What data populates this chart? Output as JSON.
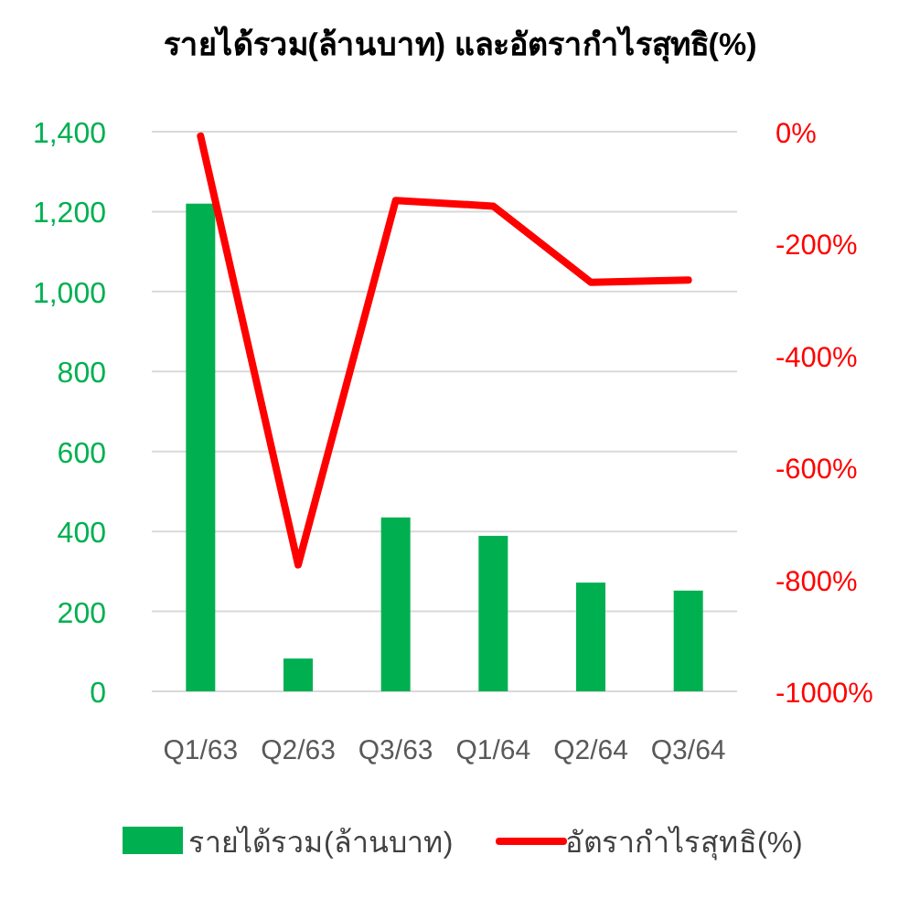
{
  "chart_data": {
    "type": "bar",
    "title": "รายได้รวม(ล้านบาท) และอัตรากำไรสุทธิ(%)",
    "categories": [
      "Q1/63",
      "Q2/63",
      "Q3/63",
      "Q1/64",
      "Q2/64",
      "Q3/64"
    ],
    "series": [
      {
        "name": "รายได้รวม(ล้านบาท)",
        "color": "#00b050",
        "values": [
          1220,
          82,
          435,
          389,
          272,
          252
        ]
      },
      {
        "name": "อัตรากำไรสุทธิ(%)",
        "type": "line",
        "axis": "y2",
        "color": "#ff0000",
        "marker": "none",
        "line_style": "solid",
        "values": [
          -8,
          -774,
          -123,
          -133,
          -269,
          -265
        ]
      }
    ],
    "ylim": [
      0,
      1400
    ],
    "yticks": [
      {
        "value": 0,
        "label": "0"
      },
      {
        "value": 200,
        "label": "200"
      },
      {
        "value": 400,
        "label": "400"
      },
      {
        "value": 600,
        "label": "600"
      },
      {
        "value": 800,
        "label": "800"
      },
      {
        "value": 1000,
        "label": "1,000"
      },
      {
        "value": 1200,
        "label": "1,200"
      },
      {
        "value": 1400,
        "label": "1,400"
      }
    ],
    "y2lim": [
      -1000,
      0
    ],
    "y2ticks": [
      {
        "value": 0,
        "label": "0%"
      },
      {
        "value": -200,
        "label": "-200%"
      },
      {
        "value": -400,
        "label": "-400%"
      },
      {
        "value": -600,
        "label": "-600%"
      },
      {
        "value": -800,
        "label": "-800%"
      },
      {
        "value": -1000,
        "label": "-1000%"
      }
    ],
    "grid": "y",
    "legend": "bottom"
  }
}
